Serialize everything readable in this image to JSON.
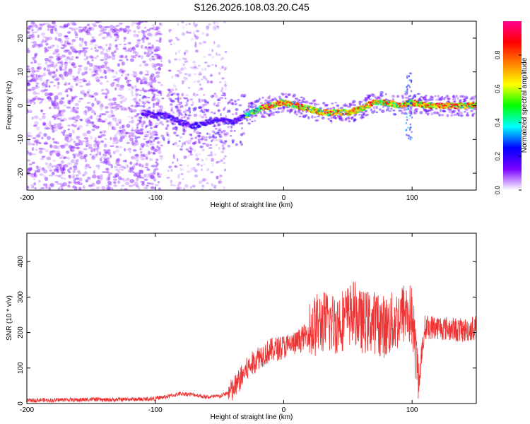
{
  "chart_data": [
    {
      "type": "heatmap",
      "title": "S126.2026.108.03.20.C45",
      "xlabel": "Height of straight line (km)",
      "ylabel": "Frequency (Hz)",
      "xlim": [
        -200,
        150
      ],
      "ylim": [
        -25,
        25
      ],
      "x_ticks": [
        -200,
        -100,
        0,
        100
      ],
      "y_ticks": [
        -20,
        -10,
        0,
        10,
        20
      ],
      "colorbar": {
        "label": "Normalized spectral amplitude",
        "range": [
          0,
          1
        ],
        "ticks": [
          "0.0",
          "0.2",
          "0.4",
          "0.6",
          "0.8"
        ],
        "stops": [
          "#ffffff",
          "#7b00ff",
          "#0000ff",
          "#00ffff",
          "#00ff00",
          "#ffff00",
          "#ff8000",
          "#ff0000",
          "#ff0090"
        ]
      },
      "ridge": {
        "x": [
          -110,
          -100,
          -90,
          -80,
          -70,
          -60,
          -50,
          -40,
          -30,
          -20,
          -10,
          0,
          10,
          20,
          30,
          40,
          50,
          60,
          70,
          80,
          90,
          100,
          110,
          120,
          130,
          140,
          150
        ],
        "frequency": [
          -2,
          -3,
          -3,
          -5,
          -6,
          -5,
          -4,
          -5,
          -3,
          -1,
          0,
          1,
          0,
          -1,
          -2,
          -2,
          -2,
          -1,
          1,
          1,
          0,
          1,
          0,
          0,
          0,
          0,
          0
        ]
      }
    },
    {
      "type": "line",
      "xlabel": "Height of straight line (km)",
      "ylabel": "SNR (10 * v/v)",
      "xlim": [
        -200,
        150
      ],
      "ylim": [
        0,
        480
      ],
      "x_ticks": [
        -200,
        -100,
        0,
        100
      ],
      "y_ticks": [
        0,
        100,
        200,
        300,
        400
      ],
      "color": "#ee3333",
      "series": [
        {
          "name": "SNR",
          "x": [
            -200,
            -190,
            -180,
            -170,
            -160,
            -150,
            -140,
            -130,
            -120,
            -110,
            -100,
            -90,
            -80,
            -70,
            -60,
            -50,
            -40,
            -30,
            -25,
            -20,
            -10,
            0,
            10,
            20,
            25,
            30,
            40,
            50,
            55,
            60,
            70,
            80,
            90,
            95,
            100,
            105,
            110,
            120,
            130,
            140,
            150
          ],
          "values": [
            8,
            10,
            9,
            11,
            10,
            12,
            10,
            11,
            12,
            12,
            14,
            20,
            28,
            25,
            18,
            20,
            35,
            90,
            110,
            130,
            150,
            160,
            170,
            200,
            220,
            230,
            225,
            245,
            260,
            230,
            230,
            215,
            240,
            260,
            245,
            60,
            215,
            215,
            210,
            205,
            215
          ]
        }
      ]
    }
  ]
}
